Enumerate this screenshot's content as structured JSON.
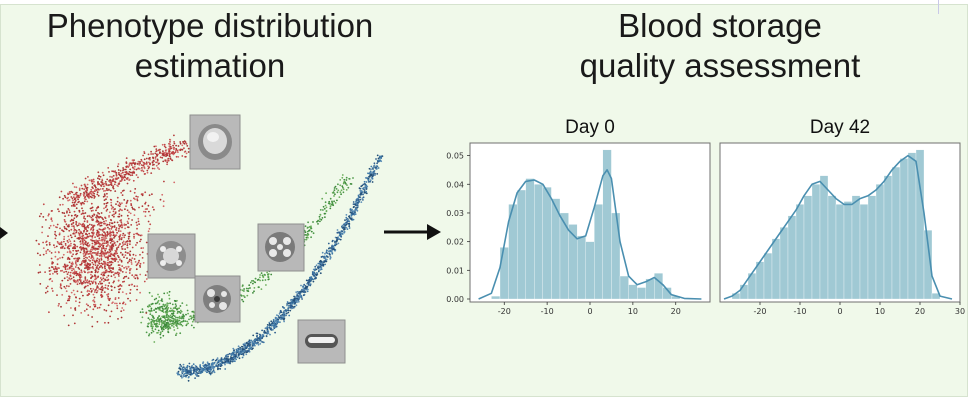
{
  "left_section": {
    "title_line1": "Phenotype distribution",
    "title_line2": "estimation"
  },
  "right_section": {
    "title_line1": "Blood storage",
    "title_line2": "quality assessment"
  },
  "colors": {
    "background": "#f0f9ea",
    "histogram_fill": "#8fbfcc",
    "kde_line": "#4a8fb0",
    "cluster_red": "#c24848",
    "cluster_green": "#4e9a4a",
    "cluster_blue": "#2f5f8f"
  },
  "chart_data": [
    {
      "type": "bar",
      "title": "Day 0",
      "xlim": [
        -28,
        28
      ],
      "ylim": [
        0,
        0.053
      ],
      "xticks": [
        -20,
        -10,
        0,
        10,
        20
      ],
      "yticks": [
        0.0,
        0.01,
        0.02,
        0.03,
        0.04,
        0.05
      ],
      "ytick_labels": [
        "0.00",
        "0.01",
        "0.02",
        "0.03",
        "0.04",
        "0.05"
      ],
      "bin_edges": [
        -23,
        -21,
        -19,
        -17,
        -15,
        -13,
        -11,
        -9,
        -7,
        -5,
        -3,
        -1,
        1,
        3,
        5,
        7,
        9,
        11,
        13,
        15,
        17,
        19
      ],
      "values": [
        0.001,
        0.018,
        0.033,
        0.038,
        0.042,
        0.04,
        0.039,
        0.035,
        0.03,
        0.026,
        0.022,
        0.02,
        0.033,
        0.052,
        0.03,
        0.008,
        0.005,
        0.004,
        0.007,
        0.009,
        0.004,
        0.001
      ],
      "kde_x": [
        -26,
        -23,
        -21,
        -19,
        -17,
        -15,
        -13,
        -11,
        -9,
        -7,
        -5,
        -3,
        -1,
        1,
        3,
        4,
        5,
        7,
        9,
        11,
        13,
        15,
        17,
        19,
        22,
        26
      ],
      "kde_y": [
        0.0,
        0.002,
        0.011,
        0.027,
        0.037,
        0.041,
        0.0415,
        0.04,
        0.035,
        0.029,
        0.024,
        0.021,
        0.022,
        0.032,
        0.043,
        0.045,
        0.042,
        0.02,
        0.008,
        0.005,
        0.006,
        0.0075,
        0.005,
        0.0015,
        0.0002,
        0.0
      ]
    },
    {
      "type": "bar",
      "title": "Day 42",
      "xlim": [
        -30,
        30
      ],
      "ylim": [
        0,
        0.053
      ],
      "xticks": [
        -20,
        -10,
        0,
        10,
        20,
        30
      ],
      "yticks": [],
      "bin_edges": [
        -27,
        -25,
        -23,
        -21,
        -19,
        -17,
        -15,
        -13,
        -11,
        -9,
        -7,
        -5,
        -3,
        -1,
        1,
        3,
        5,
        7,
        9,
        11,
        13,
        15,
        17,
        19,
        21,
        23
      ],
      "values": [
        0.002,
        0.005,
        0.009,
        0.013,
        0.016,
        0.021,
        0.025,
        0.029,
        0.033,
        0.036,
        0.04,
        0.043,
        0.036,
        0.033,
        0.034,
        0.036,
        0.033,
        0.036,
        0.04,
        0.043,
        0.046,
        0.049,
        0.051,
        0.052,
        0.024,
        0.002
      ],
      "kde_x": [
        -29,
        -27,
        -25,
        -23,
        -21,
        -19,
        -17,
        -15,
        -13,
        -11,
        -9,
        -7,
        -5,
        -3,
        -1,
        1,
        3,
        5,
        7,
        9,
        11,
        13,
        15,
        17,
        19,
        21,
        23,
        25,
        28
      ],
      "kde_y": [
        0.0,
        0.001,
        0.003,
        0.007,
        0.011,
        0.015,
        0.019,
        0.023,
        0.027,
        0.031,
        0.036,
        0.04,
        0.041,
        0.038,
        0.035,
        0.033,
        0.033,
        0.035,
        0.036,
        0.038,
        0.041,
        0.045,
        0.048,
        0.05,
        0.048,
        0.03,
        0.008,
        0.001,
        0.0
      ]
    }
  ]
}
